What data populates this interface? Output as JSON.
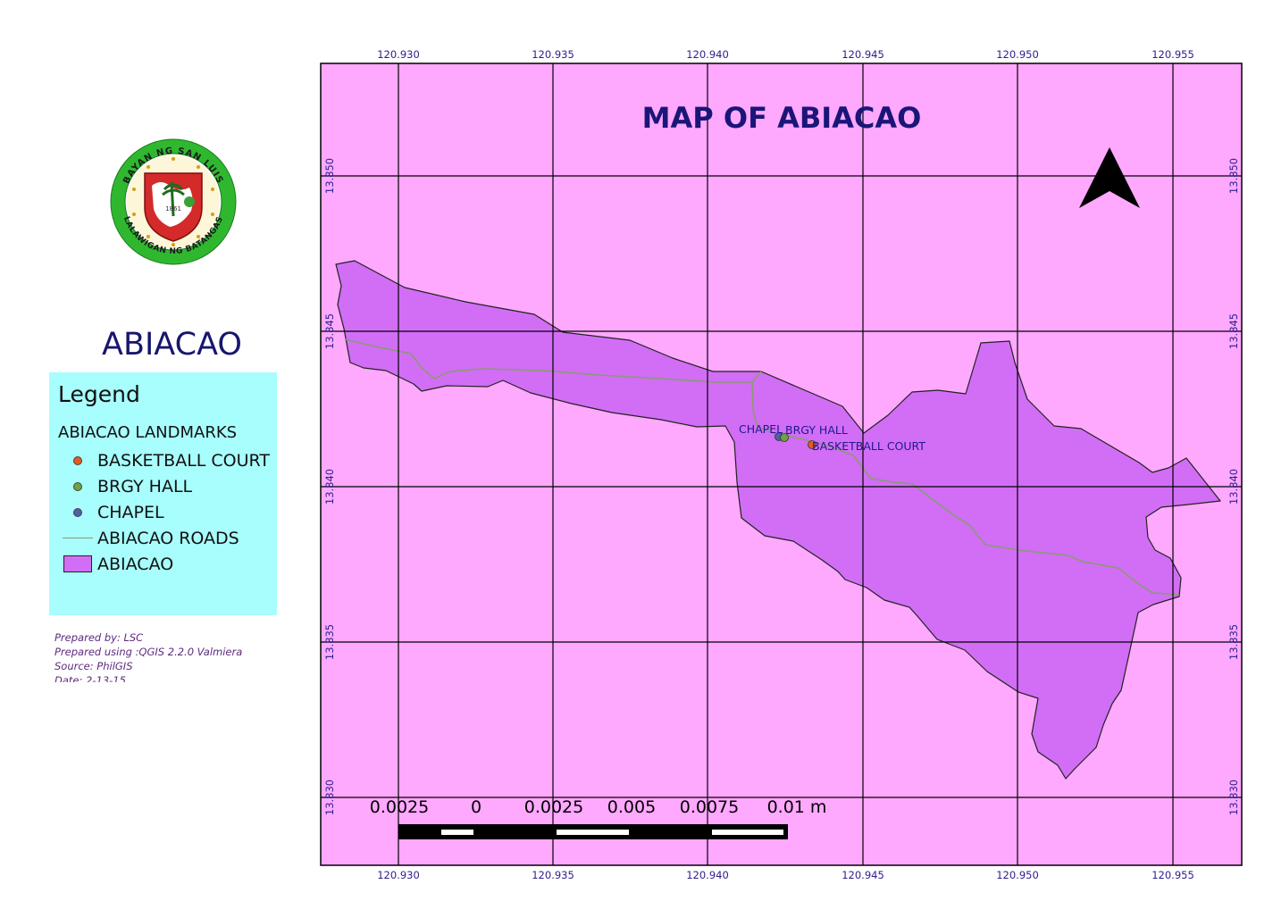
{
  "title": "MAP OF ABIACAO",
  "place_name": "ABIACAO",
  "legend": {
    "title": "Legend",
    "group_label": "ABIACAO LANDMARKS",
    "items": [
      {
        "label": "BASKETBALL COURT",
        "symbol": "point",
        "color": "#e35c1c"
      },
      {
        "label": "BRGY HALL",
        "symbol": "point",
        "color": "#6fa33c"
      },
      {
        "label": "CHAPEL",
        "symbol": "point",
        "color": "#4f5ea8"
      },
      {
        "label": "ABIACAO ROADS",
        "symbol": "line",
        "color": "#8a9a72"
      },
      {
        "label": "ABIACAO",
        "symbol": "polygon",
        "color": "#d16ef5"
      }
    ]
  },
  "credits": [
    "Prepared by: LSC",
    "Prepared using :QGIS 2.2.0 Valmiera",
    "Source: PhilGIS",
    "Date: 2-13-15"
  ],
  "seal": {
    "top_text": "BAYAN NG SAN LUIS",
    "bottom_text": "LALAWIGAN NG BATANGAS",
    "year": "1861"
  },
  "grid": {
    "longitudes": [
      "120.930",
      "120.935",
      "120.940",
      "120.945",
      "120.950",
      "120.955"
    ],
    "latitudes": [
      "13.850",
      "13.845",
      "13.840",
      "13.835",
      "13.830"
    ]
  },
  "labels": {
    "chapel": "CHAPEL",
    "brgy_hall": "BRGY HALL",
    "basketball_court": "BASKETBALL COURT"
  },
  "scale_bar": {
    "labels": [
      "0.0025",
      "0",
      "0.0025",
      "0.005",
      "0.0075",
      "0.01 m"
    ]
  },
  "north_arrow": "north-arrow-icon",
  "colors": {
    "background": "#fea8fe",
    "polygon": "#d16ef5",
    "road": "#8a9a72",
    "grid": "#000000",
    "title": "#1a1678",
    "legend_bg": "#a8fdfd"
  }
}
